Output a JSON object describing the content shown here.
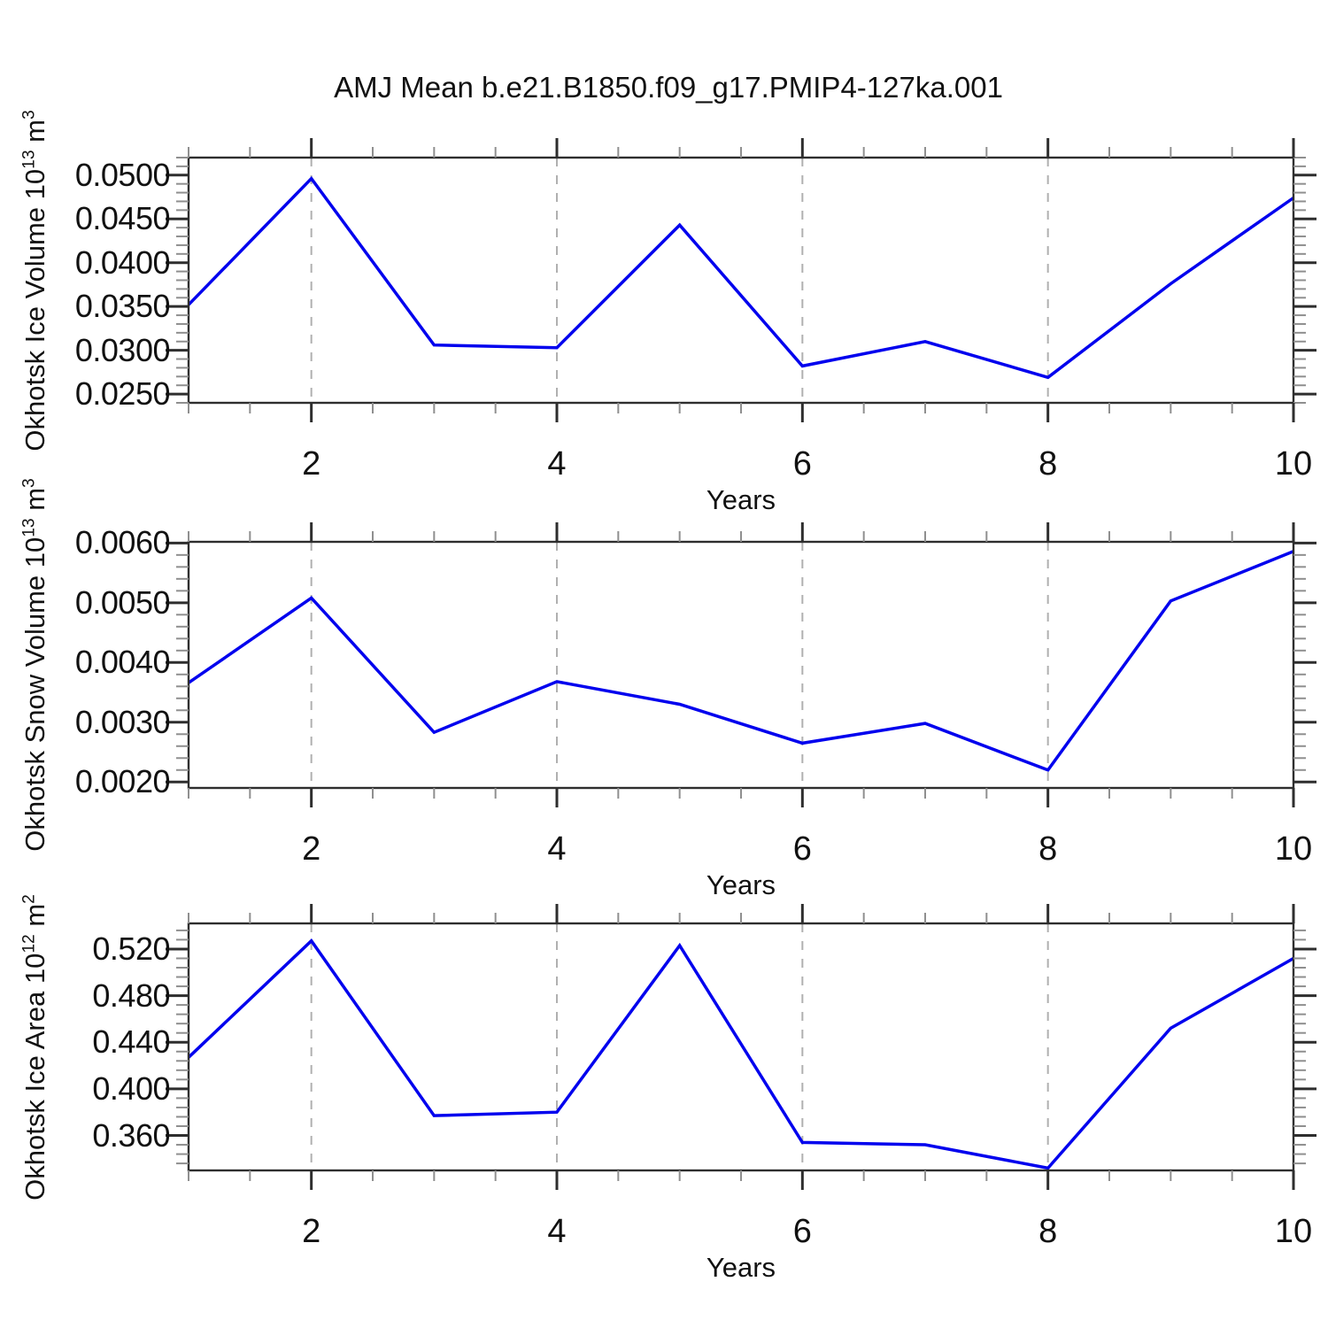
{
  "title": "AMJ Mean b.e21.B1850.f09_g17.PMIP4-127ka.001",
  "styles": {
    "line_color": "#0000ee",
    "grid_color": "#b0b0b0",
    "axis_color": "#2e2e2e",
    "minor_tick_color": "#8f8f8f",
    "background": "#ffffff",
    "grid_dash": "10 10"
  },
  "chart_data": [
    {
      "type": "line",
      "panel": "ice-volume",
      "ylabel": "Okhotsk Ice Volume 10^13 m^3",
      "ylabel_parts": [
        [
          "t",
          "Okhotsk Ice Volume 10"
        ],
        [
          "sup",
          "13"
        ],
        [
          "t",
          " m"
        ],
        [
          "sup",
          "3"
        ]
      ],
      "xlabel": "Years",
      "x": [
        1,
        2,
        3,
        4,
        5,
        6,
        7,
        8,
        9,
        10
      ],
      "series": [
        {
          "name": "okhotsk_ice_volume",
          "values": [
            0.0352,
            0.0496,
            0.0306,
            0.0303,
            0.0443,
            0.0282,
            0.031,
            0.0269,
            0.0376,
            0.0474
          ]
        }
      ],
      "xlim": [
        1,
        10
      ],
      "ylim": [
        0.024,
        0.052
      ],
      "yticks": [
        0.025,
        0.03,
        0.035,
        0.04,
        0.045,
        0.05
      ],
      "ytick_labels": [
        "0.0250",
        "0.0300",
        "0.0350",
        "0.0400",
        "0.0450",
        "0.0500"
      ],
      "yminor_step": 0.001,
      "xticks": [
        2,
        4,
        6,
        8,
        10
      ],
      "xtick_labels": [
        "2",
        "4",
        "6",
        "8",
        "10"
      ],
      "xminor_step": 0.5,
      "grid_x": [
        2,
        4,
        6,
        8
      ],
      "grid": "vertical-dashed",
      "legend": "none"
    },
    {
      "type": "line",
      "panel": "snow-volume",
      "ylabel": "Okhotsk Snow Volume 10^13 m^3",
      "ylabel_parts": [
        [
          "t",
          "Okhotsk Snow Volume 10"
        ],
        [
          "sup",
          "13"
        ],
        [
          "t",
          " m"
        ],
        [
          "sup",
          "3"
        ]
      ],
      "xlabel": "Years",
      "x": [
        1,
        2,
        3,
        4,
        5,
        6,
        7,
        8,
        9,
        10
      ],
      "series": [
        {
          "name": "okhotsk_snow_volume",
          "values": [
            0.00366,
            0.00508,
            0.00283,
            0.00368,
            0.0033,
            0.00265,
            0.00298,
            0.0022,
            0.00503,
            0.00586
          ]
        }
      ],
      "xlim": [
        1,
        10
      ],
      "ylim": [
        0.0019,
        0.00602
      ],
      "yticks": [
        0.002,
        0.003,
        0.004,
        0.005,
        0.006
      ],
      "ytick_labels": [
        "0.0020",
        "0.0030",
        "0.0040",
        "0.0050",
        "0.0060"
      ],
      "yminor_step": 0.0002,
      "xticks": [
        2,
        4,
        6,
        8,
        10
      ],
      "xtick_labels": [
        "2",
        "4",
        "6",
        "8",
        "10"
      ],
      "xminor_step": 0.5,
      "grid_x": [
        2,
        4,
        6,
        8
      ],
      "grid": "vertical-dashed",
      "legend": "none"
    },
    {
      "type": "line",
      "panel": "ice-area",
      "ylabel": "Okhotsk Ice Area 10^12 m^2",
      "ylabel_parts": [
        [
          "t",
          "Okhotsk Ice Area 10"
        ],
        [
          "sup",
          "12"
        ],
        [
          "t",
          " m"
        ],
        [
          "sup",
          "2"
        ]
      ],
      "xlabel": "Years",
      "x": [
        1,
        2,
        3,
        4,
        5,
        6,
        7,
        8,
        9,
        10
      ],
      "series": [
        {
          "name": "okhotsk_ice_area",
          "values": [
            0.427,
            0.527,
            0.377,
            0.38,
            0.523,
            0.354,
            0.352,
            0.332,
            0.452,
            0.512
          ]
        }
      ],
      "xlim": [
        1,
        10
      ],
      "ylim": [
        0.33,
        0.542
      ],
      "yticks": [
        0.36,
        0.4,
        0.44,
        0.48,
        0.52
      ],
      "ytick_labels": [
        "0.360",
        "0.400",
        "0.440",
        "0.480",
        "0.520"
      ],
      "yminor_step": 0.008,
      "xticks": [
        2,
        4,
        6,
        8,
        10
      ],
      "xtick_labels": [
        "2",
        "4",
        "6",
        "8",
        "10"
      ],
      "xminor_step": 0.5,
      "grid_x": [
        2,
        4,
        6,
        8
      ],
      "grid": "vertical-dashed",
      "legend": "none"
    }
  ]
}
